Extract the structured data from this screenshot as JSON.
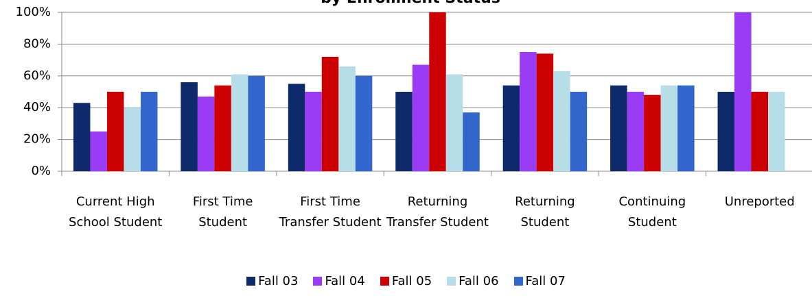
{
  "chart_data": {
    "type": "bar",
    "title": "by Enrollment Status",
    "categories": [
      "Current High School Student",
      "First Time Student",
      "First Time Transfer Student",
      "Returning Transfer Student",
      "Returning Student",
      "Continuing Student",
      "Unreported"
    ],
    "series": [
      {
        "name": "Fall 03",
        "color": "#0e2a6a",
        "values": [
          43,
          56,
          55,
          50,
          54,
          54,
          50
        ]
      },
      {
        "name": "Fall 04",
        "color": "#9a3cf4",
        "values": [
          25,
          47,
          50,
          67,
          75,
          50,
          100
        ]
      },
      {
        "name": "Fall 05",
        "color": "#cc0000",
        "values": [
          50,
          54,
          72,
          100,
          74,
          48,
          50
        ]
      },
      {
        "name": "Fall 06",
        "color": "#b7dde8",
        "values": [
          40,
          61,
          66,
          61,
          63,
          54,
          50
        ]
      },
      {
        "name": "Fall 07",
        "color": "#3366cc",
        "values": [
          50,
          60,
          60,
          37,
          50,
          54,
          null
        ]
      }
    ],
    "ylim": [
      0,
      100
    ],
    "yticks": [
      {
        "value": 0,
        "label": "0%"
      },
      {
        "value": 20,
        "label": "20%"
      },
      {
        "value": 40,
        "label": "40%"
      },
      {
        "value": 60,
        "label": "60%"
      },
      {
        "value": 80,
        "label": "80%"
      },
      {
        "value": 100,
        "label": "100%"
      }
    ],
    "grid": true,
    "legend": "bottom"
  }
}
